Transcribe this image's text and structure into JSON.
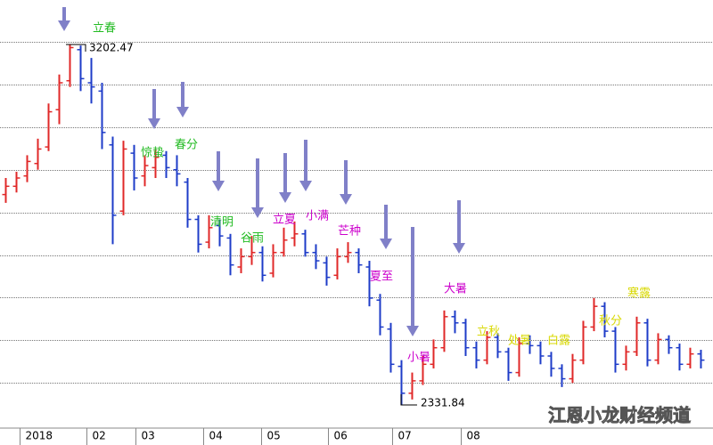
{
  "chart_data": {
    "type": "ohlc",
    "open": [
      2840,
      2860,
      2885,
      2915,
      2955,
      3045,
      3115,
      3190,
      3110,
      3090,
      2960,
      2800,
      2940,
      2885,
      2905,
      2935,
      2900,
      2870,
      2780,
      2725,
      2765,
      2735,
      2665,
      2690,
      2700,
      2650,
      2700,
      2735,
      2745,
      2700,
      2675,
      2645,
      2690,
      2700,
      2665,
      2585,
      2515,
      2425,
      2360,
      2390,
      2430,
      2470,
      2545,
      2530,
      2470,
      2440,
      2495,
      2460,
      2410,
      2480,
      2475,
      2450,
      2420,
      2395,
      2440,
      2520,
      2570,
      2510,
      2430,
      2460,
      2530,
      2440,
      2490,
      2470,
      2430,
      2455
    ],
    "high": [
      2880,
      2895,
      2935,
      2975,
      3060,
      3130,
      3202.47,
      3200,
      3170,
      3110,
      2980,
      2970,
      2960,
      2935,
      2950,
      2945,
      2935,
      2880,
      2790,
      2790,
      2780,
      2745,
      2710,
      2740,
      2715,
      2720,
      2760,
      2775,
      2755,
      2720,
      2690,
      2710,
      2725,
      2710,
      2680,
      2600,
      2530,
      2440,
      2410,
      2450,
      2490,
      2560,
      2560,
      2540,
      2485,
      2510,
      2505,
      2470,
      2495,
      2500,
      2485,
      2460,
      2430,
      2455,
      2535,
      2590,
      2580,
      2520,
      2475,
      2545,
      2540,
      2505,
      2500,
      2480,
      2470,
      2465
    ],
    "low": [
      2820,
      2845,
      2870,
      2900,
      2945,
      3010,
      3100,
      3090,
      3060,
      2950,
      2720,
      2790,
      2850,
      2860,
      2880,
      2880,
      2860,
      2760,
      2700,
      2710,
      2715,
      2645,
      2650,
      2670,
      2630,
      2640,
      2690,
      2715,
      2690,
      2660,
      2620,
      2635,
      2675,
      2650,
      2570,
      2500,
      2410,
      2331.84,
      2345,
      2380,
      2420,
      2460,
      2505,
      2450,
      2420,
      2430,
      2445,
      2390,
      2400,
      2455,
      2430,
      2400,
      2375,
      2385,
      2430,
      2510,
      2495,
      2410,
      2415,
      2450,
      2425,
      2430,
      2455,
      2415,
      2420,
      2420
    ],
    "close": [
      2860,
      2880,
      2920,
      2950,
      3040,
      3110,
      3195,
      3120,
      3100,
      2990,
      2790,
      2950,
      2880,
      2910,
      2930,
      2905,
      2890,
      2780,
      2720,
      2760,
      2740,
      2670,
      2690,
      2700,
      2645,
      2700,
      2730,
      2745,
      2700,
      2680,
      2640,
      2690,
      2700,
      2670,
      2590,
      2520,
      2430,
      2360,
      2390,
      2430,
      2470,
      2545,
      2530,
      2470,
      2440,
      2495,
      2460,
      2410,
      2480,
      2475,
      2450,
      2420,
      2395,
      2440,
      2520,
      2570,
      2510,
      2430,
      2460,
      2530,
      2440,
      2490,
      2470,
      2430,
      2455,
      2440
    ],
    "up_color": "#e02828",
    "down_color": "#1e3cc8",
    "xlim": [
      -0.5,
      66.17
    ],
    "xticks": [
      {
        "value": 1.3,
        "label": "2018"
      },
      {
        "value": 7.6,
        "label": "02"
      },
      {
        "value": 12.2,
        "label": "03"
      },
      {
        "value": 18.5,
        "label": "04"
      },
      {
        "value": 23.9,
        "label": "05"
      },
      {
        "value": 30.2,
        "label": "06"
      },
      {
        "value": 36.2,
        "label": "07"
      },
      {
        "value": 42.6,
        "label": "08"
      }
    ],
    "ylim": [
      2278,
      3310
    ],
    "yticks": [
      2385,
      2488,
      2591,
      2694,
      2797,
      2900,
      3003,
      3106,
      3209
    ],
    "grid": true,
    "annotations": [
      {
        "text": "立春",
        "color": "#22bb22"
      },
      {
        "text": "惊蛰",
        "color": "#22bb22"
      },
      {
        "text": "春分",
        "color": "#22bb22"
      },
      {
        "text": "清明",
        "color": "#22bb22"
      },
      {
        "text": "谷雨",
        "color": "#22bb22"
      },
      {
        "text": "立夏",
        "color": "#cc00cc"
      },
      {
        "text": "小满",
        "color": "#cc00cc"
      },
      {
        "text": "芒种",
        "color": "#cc00cc"
      },
      {
        "text": "夏至",
        "color": "#cc00cc"
      },
      {
        "text": "小暑",
        "color": "#cc00cc"
      },
      {
        "text": "大暑",
        "color": "#cc00cc"
      },
      {
        "text": "立秋",
        "color": "#d8d800"
      },
      {
        "text": "处暑",
        "color": "#d8d800"
      },
      {
        "text": "白露",
        "color": "#d8d800"
      },
      {
        "text": "秋分",
        "color": "#d8d800"
      },
      {
        "text": "寒露",
        "color": "#d8d800"
      }
    ],
    "watermark": "江恩小龙财经频道"
  }
}
